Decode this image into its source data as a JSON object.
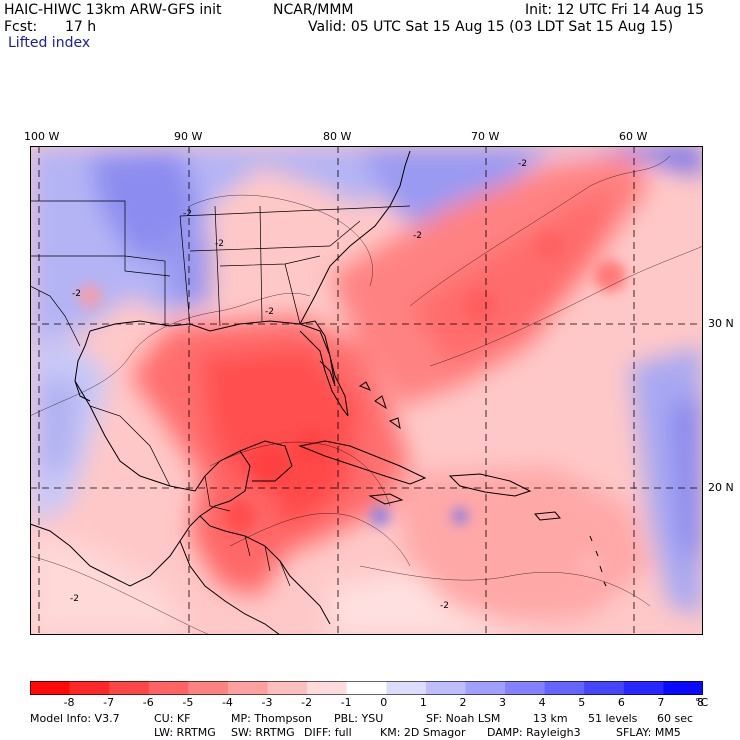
{
  "header": {
    "model_line": "HAIC-HIWC 13km ARW-GFS init",
    "org": "NCAR/MMM",
    "init": "Init: 12 UTC Fri 14 Aug 15",
    "fcst_label": "Fcst:",
    "fcst_value": "17 h",
    "valid": "Valid: 05 UTC Sat 15 Aug 15 (03 LDT Sat 15 Aug 15)",
    "field": "Lifted index"
  },
  "map": {
    "lon_labels": [
      "100 W",
      "90 W",
      "80 W",
      "70 W",
      "60 W"
    ],
    "lat_labels": [
      "30 N",
      "20 N"
    ],
    "contour_labels": [
      "-2",
      "-2",
      "-2",
      "-2",
      "-2",
      "-2",
      "-2",
      "-2"
    ]
  },
  "colorbar": {
    "tick_labels": [
      "-8",
      "-7",
      "-6",
      "-5",
      "-4",
      "-3",
      "-2",
      "-1",
      "0",
      "1",
      "2",
      "3",
      "4",
      "5",
      "6",
      "7",
      "8"
    ],
    "unit": "°C",
    "colors": [
      "#ff0a0a",
      "#ff2828",
      "#ff4646",
      "#ff6464",
      "#ff8282",
      "#ffa0a0",
      "#ffbebe",
      "#ffdcdc",
      "#ffffff",
      "#dcdcff",
      "#bebeff",
      "#a0a0ff",
      "#8282ff",
      "#6464ff",
      "#4646ff",
      "#2828ff",
      "#0a0aff"
    ]
  },
  "footer": {
    "line1": [
      "Model Info: V3.7",
      "CU: KF",
      "MP: Thompson",
      "PBL: YSU",
      "SF: Noah LSM",
      "13 km",
      "51 levels",
      "60 sec"
    ],
    "line2": [
      "LW: RRTMG",
      "SW: RRTMG",
      "DIFF: full",
      "KM: 2D Smagor",
      "DAMP: Rayleigh3",
      "SFLAY: MM5"
    ]
  }
}
